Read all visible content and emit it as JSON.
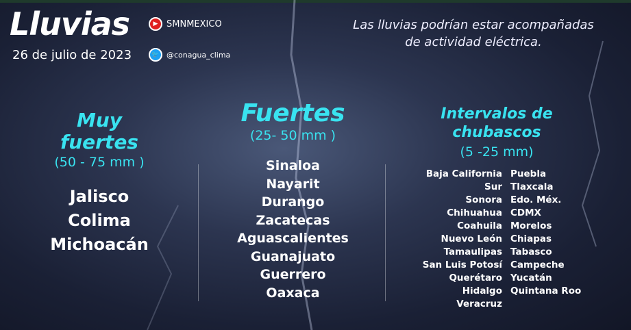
{
  "header": {
    "title": "Lluvias",
    "date": "26 de julio de 2023",
    "youtube": "SMNMEXICO",
    "twitter": "@conagua_clima",
    "note_line1": "Las lluvias podrían estar acompañadas",
    "note_line2": "de actividad eléctrica."
  },
  "colors": {
    "accent": "#39e3f0",
    "background": "#1a2035"
  },
  "icons": {
    "youtube": "youtube-icon",
    "twitter": "twitter-icon"
  },
  "muy_fuertes": {
    "title1": "Muy",
    "title2": "fuertes",
    "range": "(50 - 75 mm )",
    "states": [
      "Jalisco",
      "Colima",
      "Michoacán"
    ]
  },
  "fuertes": {
    "title": "Fuertes",
    "range": "(25- 50 mm )",
    "states": [
      "Sinaloa",
      "Nayarit",
      "Durango",
      "Zacatecas",
      "Aguascalientes",
      "Guanajuato",
      "Guerrero",
      "Oaxaca"
    ]
  },
  "intervalos": {
    "title1": "Intervalos de",
    "title2": "chubascos",
    "range": "(5 -25 mm)",
    "left": [
      "Baja California Sur",
      "Sonora",
      "Chihuahua",
      "Coahuila",
      "Nuevo León",
      "Tamaulipas",
      "San Luis Potosí",
      "Querétaro",
      "Hidalgo",
      "Veracruz"
    ],
    "right": [
      "Puebla",
      "Tlaxcala",
      "Edo. Méx.",
      "CDMX",
      "Morelos",
      "Chiapas",
      "Tabasco",
      "Campeche",
      "Yucatán",
      "Quintana Roo"
    ]
  }
}
